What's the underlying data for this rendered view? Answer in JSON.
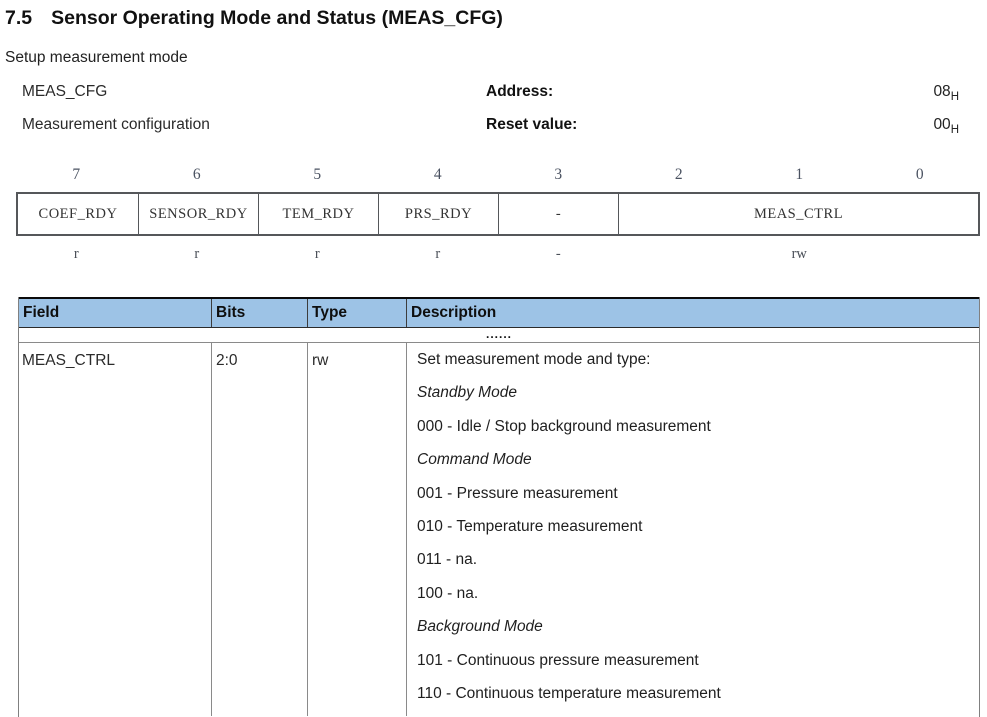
{
  "page": {
    "section_number": "7.5",
    "title": "Sensor Operating Mode and Status (MEAS_CFG)",
    "subtitle": "Setup measurement mode"
  },
  "register_info": {
    "rows": [
      {
        "name": "MEAS_CFG",
        "label": "Address:",
        "value": "08",
        "value_sub": "H"
      },
      {
        "name": "Measurement configuration",
        "label": "Reset value:",
        "value": "00",
        "value_sub": "H"
      }
    ]
  },
  "bit_table": {
    "bit_numbers": [
      "7",
      "6",
      "5",
      "4",
      "3",
      "2",
      "1",
      "0"
    ],
    "cells": [
      {
        "label": "COEF_RDY",
        "span": 1,
        "access": "r"
      },
      {
        "label": "SENSOR_RDY",
        "span": 1,
        "access": "r"
      },
      {
        "label": "TEM_RDY",
        "span": 1,
        "access": "r"
      },
      {
        "label": "PRS_RDY",
        "span": 1,
        "access": "r"
      },
      {
        "label": "-",
        "span": 1,
        "access": "-"
      },
      {
        "label": "MEAS_CTRL",
        "span": 3,
        "access": "rw"
      }
    ]
  },
  "field_table": {
    "headers": [
      "Field",
      "Bits",
      "Type",
      "Description"
    ],
    "ellipsis_row": "......",
    "rows": [
      {
        "field": "MEAS_CTRL",
        "bits": "2:0",
        "type": "rw",
        "description": [
          {
            "text": "Set measurement mode and type:",
            "style": "normal"
          },
          {
            "text": "Standby Mode",
            "style": "italic"
          },
          {
            "text": "000 - Idle / Stop background measurement",
            "style": "normal"
          },
          {
            "text": "Command Mode",
            "style": "italic"
          },
          {
            "text": "001 - Pressure measurement",
            "style": "normal"
          },
          {
            "text": "010 - Temperature measurement",
            "style": "normal"
          },
          {
            "text": "011 - na.",
            "style": "normal"
          },
          {
            "text": "100 - na.",
            "style": "normal"
          },
          {
            "text": "Background Mode",
            "style": "italic"
          },
          {
            "text": "101 - Continuous pressure measurement",
            "style": "normal"
          },
          {
            "text": "110 - Continuous temperature measurement",
            "style": "normal"
          }
        ]
      }
    ]
  },
  "colors": {
    "table_header_bg": "#9DC3E6",
    "border_gray": "#808080",
    "border_dark": "#0b0b0b",
    "text": "#1f1f1f"
  }
}
